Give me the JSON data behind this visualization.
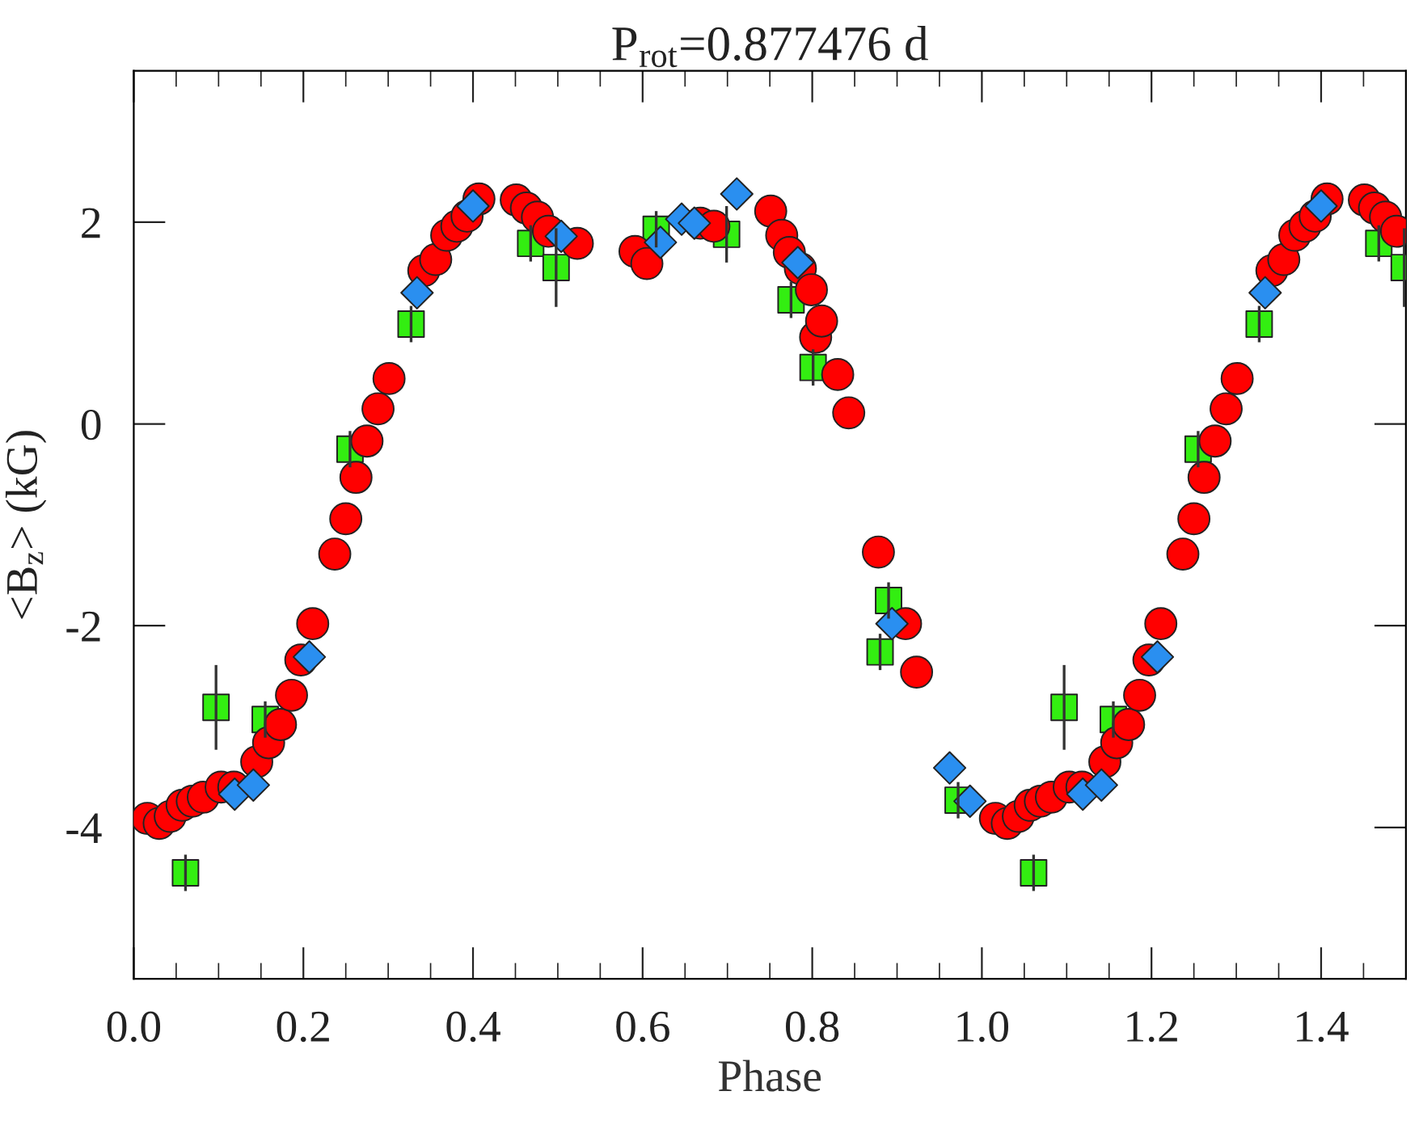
{
  "chart_data": {
    "type": "scatter",
    "title": "P$_{rot}$=0.877476 d",
    "xlabel": "Phase",
    "ylabel": "<B$_{z}$> (kG)",
    "xlim": [
      0,
      1.5
    ],
    "xticks": [
      {
        "value": 0,
        "label": "0.0"
      },
      {
        "value": 0.05,
        "label": null
      },
      {
        "value": 0.1,
        "label": null
      },
      {
        "value": 0.15,
        "label": null
      },
      0.2,
      {
        "value": 0.25,
        "label": null
      },
      {
        "value": 0.3,
        "label": null
      },
      {
        "value": 0.35,
        "label": null
      },
      0.4,
      {
        "value": 0.45,
        "label": null
      },
      {
        "value": 0.5,
        "label": null
      },
      {
        "value": 0.55,
        "label": null
      },
      0.6,
      {
        "value": 0.65,
        "label": null
      },
      {
        "value": 0.7,
        "label": null
      },
      {
        "value": 0.75,
        "label": null
      },
      0.8,
      {
        "value": 0.85,
        "label": null
      },
      {
        "value": 0.9,
        "label": null
      },
      {
        "value": 0.95,
        "label": null
      },
      {
        "value": 1,
        "label": "1.0"
      },
      {
        "value": 1.05,
        "label": null
      },
      {
        "value": 1.1,
        "label": null
      },
      {
        "value": 1.15,
        "label": null
      },
      1.2,
      {
        "value": 1.25,
        "label": null
      },
      {
        "value": 1.3,
        "label": null
      },
      {
        "value": 1.35,
        "label": null
      },
      1.4,
      {
        "value": 1.45,
        "label": null
      }
    ],
    "ylim": [
      -5.5,
      3.5
    ],
    "yticks": [
      -4,
      -2,
      0,
      2
    ],
    "series": [
      {
        "color": "#ff0000",
        "marker": "circle",
        "x": [
          0.016,
          0.03,
          0.043,
          0.057,
          0.069,
          0.082,
          0.103,
          0.118,
          0.145,
          0.159,
          0.173,
          0.186,
          0.197,
          0.211,
          0.237,
          0.25,
          0.262,
          0.275,
          0.288,
          0.301,
          0.342,
          0.356,
          0.369,
          0.381,
          0.393,
          0.407,
          0.451,
          0.463,
          0.476,
          0.489,
          0.523,
          0.591,
          0.605,
          0.668,
          0.684,
          0.751,
          0.764,
          0.773,
          0.786,
          0.799,
          0.804,
          0.811,
          0.83,
          0.843,
          0.878,
          0.91,
          0.923,
          1.016,
          1.03,
          1.043,
          1.057,
          1.069,
          1.082,
          1.103,
          1.118,
          1.145,
          1.159,
          1.173,
          1.186,
          1.197,
          1.211,
          1.237,
          1.25,
          1.262,
          1.275,
          1.288,
          1.301,
          1.342,
          1.356,
          1.369,
          1.381,
          1.393,
          1.407,
          1.451,
          1.463,
          1.476,
          1.489
        ],
        "values": [
          -3.91,
          -3.96,
          -3.89,
          -3.78,
          -3.74,
          -3.7,
          -3.6,
          -3.6,
          -3.35,
          -3.16,
          -2.98,
          -2.69,
          -2.34,
          -1.98,
          -1.29,
          -0.94,
          -0.53,
          -0.17,
          0.15,
          0.45,
          1.52,
          1.63,
          1.87,
          1.96,
          2.06,
          2.23,
          2.22,
          2.14,
          2.05,
          1.91,
          1.79,
          1.71,
          1.59,
          1.99,
          1.96,
          2.11,
          1.87,
          1.7,
          1.54,
          1.33,
          0.86,
          1.02,
          0.49,
          0.11,
          -1.27,
          -1.98,
          -2.46,
          -3.91,
          -3.96,
          -3.89,
          -3.78,
          -3.74,
          -3.7,
          -3.6,
          -3.6,
          -3.35,
          -3.16,
          -2.98,
          -2.69,
          -2.34,
          -1.98,
          -1.29,
          -0.94,
          -0.53,
          -0.17,
          0.15,
          0.45,
          1.52,
          1.63,
          1.87,
          1.96,
          2.06,
          2.23,
          2.22,
          2.14,
          2.05,
          1.91
        ]
      },
      {
        "color": "#33ee11",
        "marker": "square",
        "x": [
          0.061,
          0.097,
          0.155,
          0.255,
          0.327,
          0.468,
          0.498,
          0.616,
          0.699,
          0.775,
          0.801,
          0.88,
          0.89,
          0.972,
          1.061,
          1.097,
          1.155,
          1.255,
          1.327,
          1.468,
          1.498
        ],
        "values": [
          -4.45,
          -2.81,
          -2.93,
          -0.25,
          0.99,
          1.79,
          1.55,
          1.93,
          1.88,
          1.23,
          0.56,
          -2.26,
          -1.75,
          -3.73,
          -4.45,
          -2.81,
          -2.93,
          -0.25,
          0.99,
          1.79,
          1.55
        ],
        "errors": [
          0.18,
          0.42,
          0.18,
          0.18,
          0.18,
          0.18,
          0.39,
          0.18,
          0.28,
          0.18,
          0.18,
          0.18,
          0.18,
          0.18,
          0.18,
          0.42,
          0.18,
          0.18,
          0.18,
          0.18,
          0.39
        ]
      },
      {
        "color": "#2a8ff0",
        "marker": "diamond",
        "x": [
          0.119,
          0.141,
          0.207,
          0.334,
          0.4,
          0.504,
          0.621,
          0.646,
          0.661,
          0.711,
          0.783,
          0.894,
          0.962,
          0.986,
          1.119,
          1.141,
          1.207,
          1.334,
          1.4
        ],
        "values": [
          -3.67,
          -3.58,
          -2.31,
          1.3,
          2.16,
          1.86,
          1.8,
          2.03,
          1.99,
          2.28,
          1.6,
          -1.98,
          -3.41,
          -3.74,
          -3.67,
          -3.58,
          -2.31,
          1.3,
          2.16
        ]
      }
    ]
  }
}
